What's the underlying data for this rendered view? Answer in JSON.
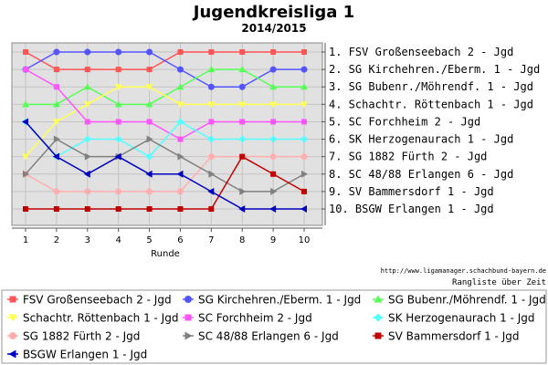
{
  "header": {
    "title": "Jugendkreisliga 1",
    "season": "2014/2015"
  },
  "footer": {
    "url": "http://www.ligamanager.schachbund-bayern.de",
    "caption": "Rangliste über Zeit"
  },
  "chart_data": {
    "type": "line",
    "title": "Jugendkreisliga 1",
    "subtitle": "2014/2015",
    "xlabel": "Runde",
    "ylabel": "",
    "x": [
      1,
      2,
      3,
      4,
      5,
      6,
      7,
      8,
      9,
      10
    ],
    "xlim": [
      1,
      10
    ],
    "ylim": [
      10,
      1
    ],
    "y_inverted": true,
    "grid": true,
    "legend_placement": "bottom",
    "rank_labels": [
      "1. FSV Großenseebach 2 - Jgd",
      "2. SG Kirchehren./Eberm. 1 - Jgd",
      "3. SG Bubenr./Möhrendf. 1 - Jgd",
      "4. Schachtr. Röttenbach 1 - Jgd",
      "5. SC Forchheim 2 - Jgd",
      "6. SK Herzogenaurach 1 - Jgd",
      "7. SG 1882 Fürth 2 - Jgd",
      "8. SC 48/88 Erlangen 6 - Jgd",
      "9. SV Bammersdorf 1 - Jgd",
      "10. BSGW Erlangen 1 - Jgd"
    ],
    "series": [
      {
        "name": "FSV Großenseebach 2 - Jgd",
        "color": "#ff5555",
        "marker": "square",
        "values": [
          1,
          2,
          2,
          2,
          2,
          1,
          1,
          1,
          1,
          1
        ]
      },
      {
        "name": "SG Kirchehren./Eberm. 1 - Jgd",
        "color": "#5555ff",
        "marker": "circle",
        "values": [
          2,
          1,
          1,
          1,
          1,
          2,
          3,
          3,
          2,
          2
        ]
      },
      {
        "name": "SG Bubenr./Möhrendf. 1 - Jgd",
        "color": "#55ff55",
        "marker": "triangle-up",
        "values": [
          4,
          4,
          3,
          4,
          4,
          3,
          2,
          2,
          3,
          3
        ]
      },
      {
        "name": "Schachtr. Röttenbach 1 - Jgd",
        "color": "#ffff55",
        "marker": "triangle-down",
        "values": [
          7,
          5,
          4,
          3,
          3,
          4,
          4,
          4,
          4,
          4
        ]
      },
      {
        "name": "SC Forchheim 2 - Jgd",
        "color": "#ff55ff",
        "marker": "square",
        "values": [
          2,
          3,
          5,
          5,
          5,
          6,
          5,
          5,
          5,
          5
        ]
      },
      {
        "name": "SK Herzogenaurach 1 - Jgd",
        "color": "#55ffff",
        "marker": "diamond",
        "values": [
          5,
          7,
          6,
          6,
          7,
          5,
          6,
          6,
          6,
          6
        ]
      },
      {
        "name": "SG 1882 Fürth 2 - Jgd",
        "color": "#ffafaf",
        "marker": "circle",
        "values": [
          8,
          9,
          9,
          9,
          9,
          9,
          7,
          7,
          7,
          7
        ]
      },
      {
        "name": "SC 48/88 Erlangen 6 - Jgd",
        "color": "#808080",
        "marker": "triangle-right",
        "values": [
          8,
          6,
          7,
          7,
          6,
          7,
          8,
          9,
          9,
          8
        ]
      },
      {
        "name": "SV Bammersdorf 1 - Jgd",
        "color": "#c00000",
        "marker": "square",
        "values": [
          10,
          10,
          10,
          10,
          10,
          10,
          10,
          7,
          8,
          9
        ]
      },
      {
        "name": "BSGW Erlangen 1 - Jgd",
        "color": "#0000c0",
        "marker": "triangle-left",
        "values": [
          5,
          7,
          8,
          7,
          8,
          8,
          9,
          10,
          10,
          10
        ]
      }
    ]
  }
}
